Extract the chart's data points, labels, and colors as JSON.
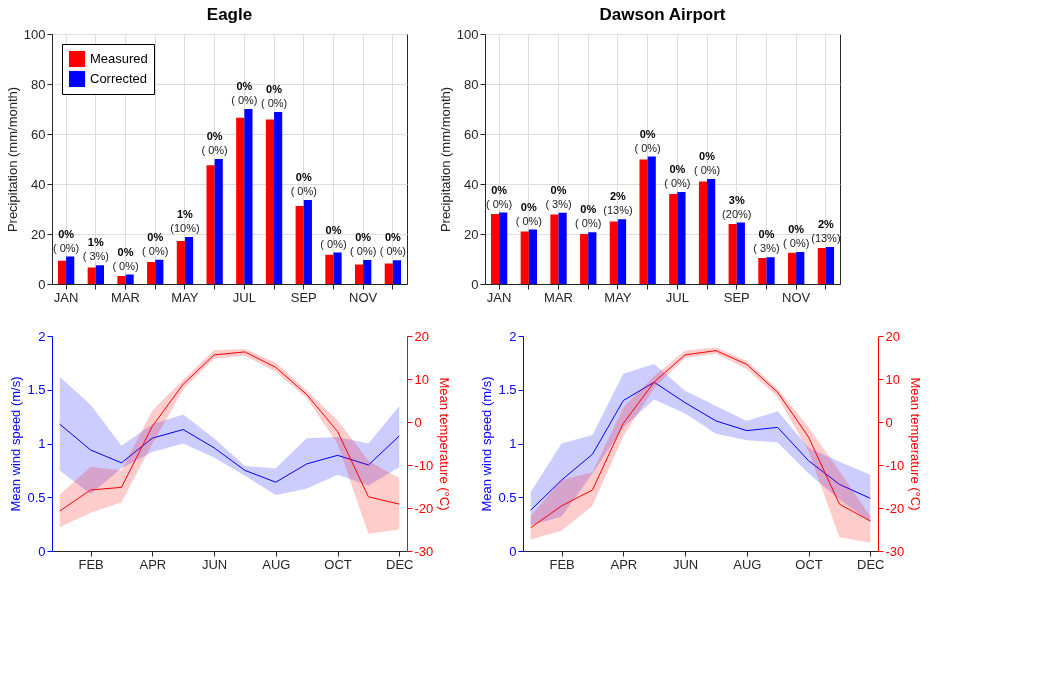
{
  "chart_data": [
    {
      "type": "bar",
      "title": "Eagle",
      "ylabel": "Precipitation (mm/month)",
      "categories": [
        "JAN",
        null,
        "MAR",
        null,
        "MAY",
        null,
        "JUL",
        null,
        "SEP",
        null,
        "NOV",
        null
      ],
      "ylim": [
        0,
        100
      ],
      "yticks": [
        0,
        20,
        40,
        60,
        80,
        100
      ],
      "grid": true,
      "legend": "top left",
      "series": [
        {
          "name": "Measured",
          "color": "#ff0000",
          "values": [
            9.3,
            6.6,
            3.2,
            8.8,
            17.2,
            47.5,
            66.5,
            65.8,
            31.2,
            11.7,
            7.8,
            8.2
          ]
        },
        {
          "name": "Corrected",
          "color": "#0000ff",
          "values": [
            11.0,
            7.5,
            3.8,
            9.7,
            18.8,
            50.0,
            70.0,
            68.8,
            33.6,
            12.6,
            9.6,
            9.5
          ]
        }
      ],
      "annotations": [
        "0%",
        "( 0%)",
        "1%",
        "( 3%)",
        "0%",
        "( 0%)",
        "0%",
        "( 0%)",
        "1%",
        "(10%)",
        "0%",
        "( 0%)",
        "0%",
        "( 0%)",
        "0%",
        "( 0%)",
        "0%",
        "( 0%)",
        "0%",
        "( 0%)",
        "0%",
        "( 0%)",
        "0%",
        "( 0%)"
      ]
    },
    {
      "type": "bar",
      "title": "Dawson Airport",
      "ylabel": "Precipitation (mm/month)",
      "categories": [
        "JAN",
        null,
        "MAR",
        null,
        "MAY",
        null,
        "JUL",
        null,
        "SEP",
        null,
        "NOV",
        null
      ],
      "ylim": [
        0,
        100
      ],
      "yticks": [
        0,
        20,
        40,
        60,
        80,
        100
      ],
      "grid": true,
      "series": [
        {
          "color": "#ff0000",
          "values": [
            28.0,
            21.0,
            27.8,
            20.0,
            25.0,
            49.8,
            36.0,
            41.0,
            24.0,
            10.4,
            12.5,
            14.4
          ]
        },
        {
          "color": "#0000ff",
          "values": [
            28.6,
            21.8,
            28.5,
            20.7,
            25.9,
            51.0,
            36.8,
            42.0,
            24.6,
            10.7,
            12.8,
            14.8
          ]
        }
      ],
      "annotations": [
        "0%",
        "( 0%)",
        "0%",
        "( 0%)",
        "0%",
        "( 3%)",
        "0%",
        "( 0%)",
        "2%",
        "(13%)",
        "0%",
        "( 0%)",
        "0%",
        "( 0%)",
        "0%",
        "( 0%)",
        "3%",
        "(20%)",
        "0%",
        "( 3%)",
        "0%",
        "( 0%)",
        "2%",
        "(13%)"
      ]
    },
    {
      "type": "line",
      "ylabel": "Mean wind speed (m/s)",
      "y2label": "Mean temperature (°C)",
      "categories": [
        null,
        "FEB",
        null,
        "APR",
        null,
        "JUN",
        null,
        "AUG",
        null,
        "OCT",
        null,
        "DEC"
      ],
      "ylim": [
        0,
        2
      ],
      "yticks": [
        0,
        0.5,
        1,
        1.5,
        2
      ],
      "y2lim": [
        -30,
        20
      ],
      "y2ticks": [
        -30,
        -20,
        -10,
        0,
        10,
        20
      ],
      "series": [
        {
          "color": "#0000ff",
          "axis": "y",
          "values": [
            1.18,
            0.94,
            0.82,
            1.05,
            1.13,
            0.96,
            0.75,
            0.64,
            0.81,
            0.89,
            0.8,
            1.07
          ],
          "lower": [
            0.75,
            0.53,
            0.77,
            0.92,
            1.0,
            0.87,
            0.7,
            0.52,
            0.58,
            0.71,
            0.61,
            0.78
          ],
          "upper": [
            1.62,
            1.36,
            0.98,
            1.18,
            1.27,
            1.05,
            0.79,
            0.77,
            1.05,
            1.06,
            1.0,
            1.35
          ]
        },
        {
          "color": "#ff0000",
          "axis": "y2",
          "values": [
            -20.7,
            -15.8,
            -15.2,
            -1.0,
            8.8,
            15.6,
            16.3,
            12.7,
            6.4,
            -2.2,
            -17.4,
            -19.1
          ],
          "lower": [
            -24.5,
            -21.1,
            -18.7,
            -5.1,
            7.6,
            14.7,
            15.4,
            11.7,
            5.5,
            -5.1,
            -26.0,
            -25.0
          ],
          "upper": [
            -16.9,
            -10.4,
            -11.3,
            2.7,
            9.8,
            16.7,
            17.0,
            13.8,
            7.3,
            0.4,
            -9.0,
            -13.1
          ]
        }
      ]
    },
    {
      "type": "line",
      "ylabel": "Mean wind speed (m/s)",
      "y2label": "Mean temperature (°C)",
      "categories": [
        null,
        "FEB",
        null,
        "APR",
        null,
        "JUN",
        null,
        "AUG",
        null,
        "OCT",
        null,
        "DEC"
      ],
      "ylim": [
        0,
        2
      ],
      "yticks": [
        0,
        0.5,
        1,
        1.5,
        2
      ],
      "y2lim": [
        -30,
        20
      ],
      "y2ticks": [
        -30,
        -20,
        -10,
        0,
        10,
        20
      ],
      "series": [
        {
          "color": "#0000ff",
          "axis": "y",
          "values": [
            0.38,
            0.66,
            0.9,
            1.4,
            1.57,
            1.38,
            1.21,
            1.12,
            1.15,
            0.84,
            0.62,
            0.49
          ],
          "lower": [
            0.24,
            0.32,
            0.72,
            1.15,
            1.41,
            1.28,
            1.09,
            1.03,
            1.01,
            0.72,
            0.48,
            0.27
          ],
          "upper": [
            0.55,
            1.0,
            1.08,
            1.65,
            1.74,
            1.49,
            1.35,
            1.21,
            1.3,
            0.96,
            0.83,
            0.71
          ]
        },
        {
          "color": "#ff0000",
          "axis": "y2",
          "values": [
            -24.6,
            -19.5,
            -15.8,
            -0.3,
            9.3,
            15.6,
            16.6,
            13.4,
            6.9,
            -3.5,
            -19.1,
            -23.0
          ],
          "lower": [
            -27.3,
            -25.3,
            -19.5,
            -3.3,
            7.9,
            14.9,
            15.9,
            12.3,
            5.8,
            -6.8,
            -26.8,
            -28.1
          ],
          "upper": [
            -21.9,
            -13.5,
            -11.7,
            3.4,
            10.7,
            16.6,
            17.3,
            14.2,
            7.7,
            -1.2,
            -11.4,
            -21.9
          ]
        }
      ]
    }
  ]
}
